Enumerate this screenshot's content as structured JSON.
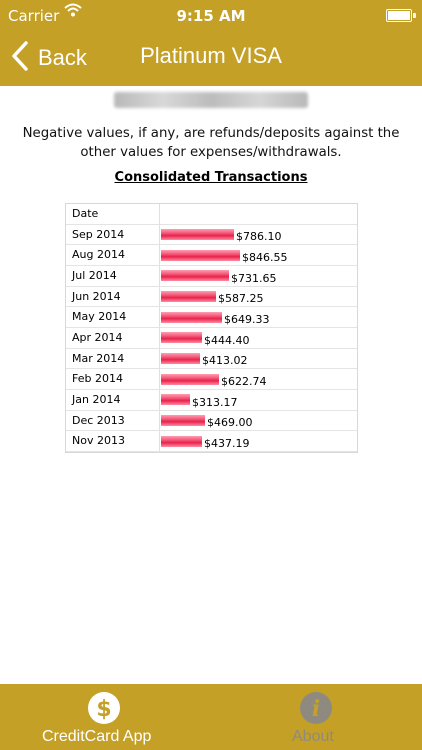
{
  "status_bar": {
    "carrier": "Carrier",
    "time": "9:15 AM"
  },
  "nav": {
    "back_label": "Back",
    "title": "Platinum VISA"
  },
  "notice": "Negative values, if any, are refunds/deposits against the other values for expenses/withdrawals.",
  "heading": "Consolidated Transactions",
  "table_header": "Date",
  "chart_data": {
    "type": "bar",
    "orientation": "horizontal",
    "title": "Consolidated Transactions",
    "categories": [
      "Sep 2014",
      "Aug 2014",
      "Jul 2014",
      "Jun 2014",
      "May 2014",
      "Apr 2014",
      "Mar 2014",
      "Feb 2014",
      "Jan 2014",
      "Dec 2013",
      "Nov 2013"
    ],
    "values": [
      786.1,
      846.55,
      731.65,
      587.25,
      649.33,
      444.4,
      413.02,
      622.74,
      313.17,
      469.0,
      437.19
    ],
    "value_labels": [
      "$786.10",
      "$846.55",
      "$731.65",
      "$587.25",
      "$649.33",
      "$444.40",
      "$413.02",
      "$622.74",
      "$313.17",
      "$469.00",
      "$437.19"
    ],
    "bar_color": "#e8224c"
  },
  "tabs": [
    {
      "label": "CreditCard App",
      "icon": "dollar-icon",
      "active": true
    },
    {
      "label": "About",
      "icon": "info-icon",
      "active": false
    }
  ],
  "colors": {
    "brand": "#c4a026",
    "bar": "#e8224c"
  }
}
